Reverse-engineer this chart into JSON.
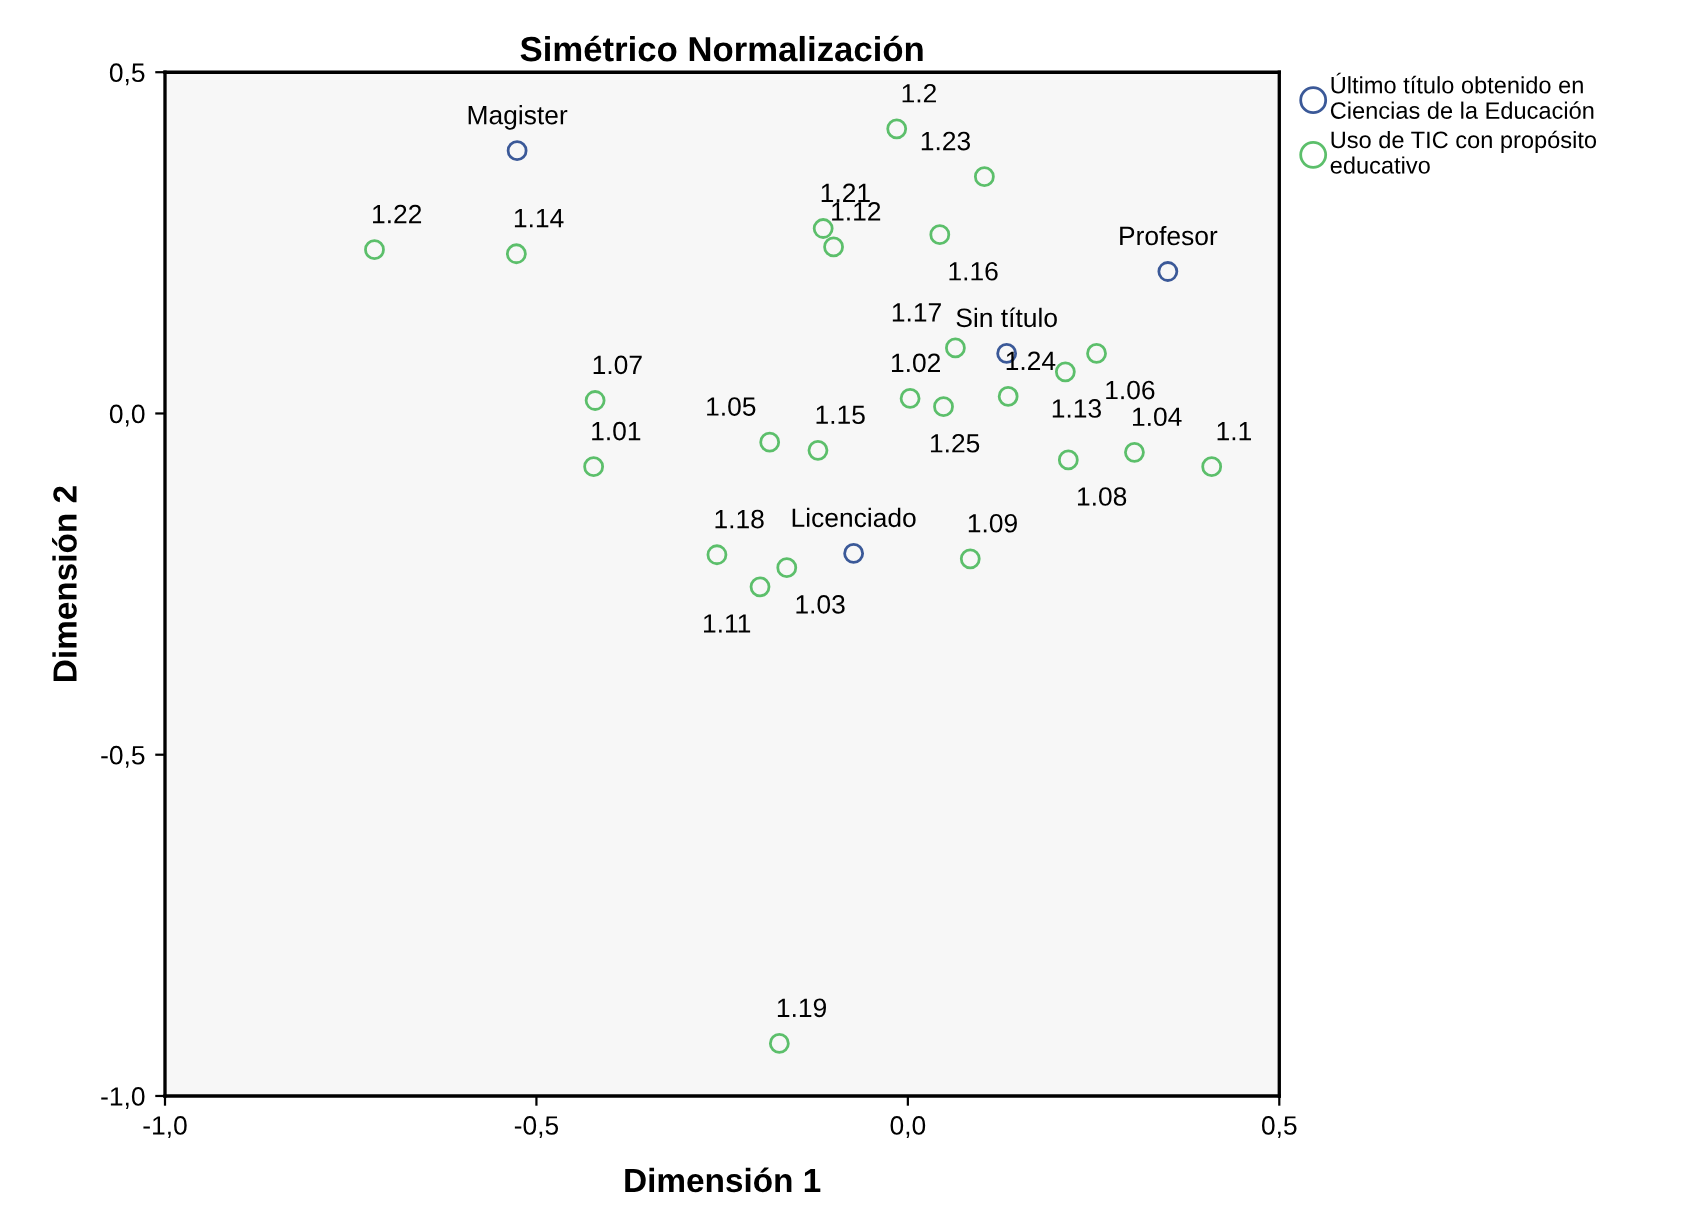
{
  "chart_data": {
    "type": "scatter",
    "title": "Simétrico Normalización",
    "xlabel": "Dimensión 1",
    "ylabel": "Dimensión 2",
    "series": [
      {
        "name": "Último título obtenido en\nCiencias de la Educación",
        "color": "#3b5998",
        "x": [
          -0.526,
          0.35,
          0.133,
          -0.073
        ],
        "values": [
          0.385,
          0.208,
          0.088,
          -0.205
        ]
      },
      {
        "name": "Uso de TIC con propósito\neducativo",
        "color": "#5cbf6b",
        "x": [
          -0.423,
          0.003,
          -0.163,
          0.305,
          -0.186,
          0.254,
          -0.421,
          0.216,
          0.084,
          0.409,
          -0.199,
          -0.1,
          0.212,
          -0.527,
          -0.121,
          0.043,
          0.064,
          -0.257,
          -0.173,
          -0.015,
          -0.114,
          -0.718,
          0.103,
          0.135,
          0.048
        ],
        "values": [
          -0.078,
          0.022,
          -0.226,
          -0.057,
          -0.042,
          0.088,
          0.019,
          -0.068,
          -0.213,
          -0.078,
          -0.254,
          0.244,
          0.061,
          0.234,
          -0.054,
          0.262,
          0.096,
          -0.207,
          -0.923,
          0.417,
          0.271,
          0.24,
          0.347,
          0.025,
          0.01
        ]
      }
    ],
    "annotations": [
      {
        "text": "Magister",
        "x": -0.526,
        "y": 0.385
      },
      {
        "text": "Profesor",
        "x": 0.35,
        "y": 0.208
      },
      {
        "text": "Sin título",
        "x": 0.133,
        "y": 0.088
      },
      {
        "text": "Licenciado",
        "x": -0.073,
        "y": -0.205
      },
      {
        "text": "1.01",
        "x": -0.423,
        "y": -0.078
      },
      {
        "text": "1.02",
        "x": 0.003,
        "y": 0.022
      },
      {
        "text": "1.03",
        "x": -0.163,
        "y": -0.226
      },
      {
        "text": "1.04",
        "x": 0.305,
        "y": -0.057
      },
      {
        "text": "1.05",
        "x": -0.186,
        "y": -0.042
      },
      {
        "text": "1.06",
        "x": 0.254,
        "y": 0.088
      },
      {
        "text": "1.07",
        "x": -0.421,
        "y": 0.019
      },
      {
        "text": "1.08",
        "x": 0.216,
        "y": -0.068
      },
      {
        "text": "1.09",
        "x": 0.084,
        "y": -0.213
      },
      {
        "text": "1.1",
        "x": 0.409,
        "y": -0.078
      },
      {
        "text": "1.11",
        "x": -0.199,
        "y": -0.254
      },
      {
        "text": "1.12",
        "x": -0.1,
        "y": 0.244
      },
      {
        "text": "1.13",
        "x": 0.212,
        "y": 0.061
      },
      {
        "text": "1.14",
        "x": -0.527,
        "y": 0.234
      },
      {
        "text": "1.15",
        "x": -0.121,
        "y": -0.054
      },
      {
        "text": "1.16",
        "x": 0.043,
        "y": 0.262
      },
      {
        "text": "1.17",
        "x": 0.064,
        "y": 0.096
      },
      {
        "text": "1.18",
        "x": -0.257,
        "y": -0.207
      },
      {
        "text": "1.19",
        "x": -0.173,
        "y": -0.923
      },
      {
        "text": "1.2",
        "x": -0.015,
        "y": 0.417
      },
      {
        "text": "1.21",
        "x": -0.114,
        "y": 0.271
      },
      {
        "text": "1.22",
        "x": -0.718,
        "y": 0.24
      },
      {
        "text": "1.23",
        "x": 0.103,
        "y": 0.347
      },
      {
        "text": "1.24",
        "x": 0.135,
        "y": 0.025
      },
      {
        "text": "1.25",
        "x": 0.048,
        "y": 0.01
      }
    ],
    "xlim": [
      -1.0,
      0.5
    ],
    "ylim": [
      -1.0,
      0.5
    ],
    "xticks": [
      {
        "value": -1.0,
        "label": "-1,0"
      },
      {
        "value": -0.5,
        "label": "-0,5"
      },
      {
        "value": 0.0,
        "label": "0,0"
      },
      {
        "value": 0.5,
        "label": "0,5"
      }
    ],
    "yticks": [
      {
        "value": -1.0,
        "label": "-1,0"
      },
      {
        "value": -0.5,
        "label": "-0,5"
      },
      {
        "value": 0.0,
        "label": "0,0"
      },
      {
        "value": 0.5,
        "label": "0,5"
      }
    ],
    "marker": "circle",
    "legend": "top right",
    "grid": false
  }
}
